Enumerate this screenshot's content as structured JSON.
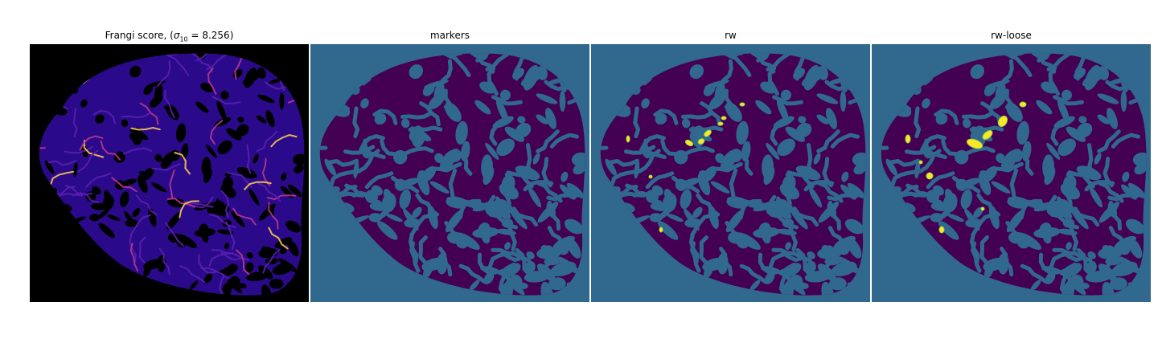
{
  "panels": [
    {
      "title_prefix": "Frangi score, (",
      "title_sigma": "σ",
      "title_sub": "10",
      "title_suffix": " = 8.256)"
    },
    {
      "title": "markers"
    },
    {
      "title": "rw"
    },
    {
      "title": "rw-loose"
    }
  ],
  "colors": {
    "frangi_background": "#000000",
    "segmentation_background": "#31688e",
    "tissue": "#440154",
    "highlight": "#fde725",
    "highlight_edge": "#90d743",
    "frangi_low": "#2a0a8a",
    "frangi_mid": "#b5368f",
    "frangi_high": "#f9c74f"
  }
}
